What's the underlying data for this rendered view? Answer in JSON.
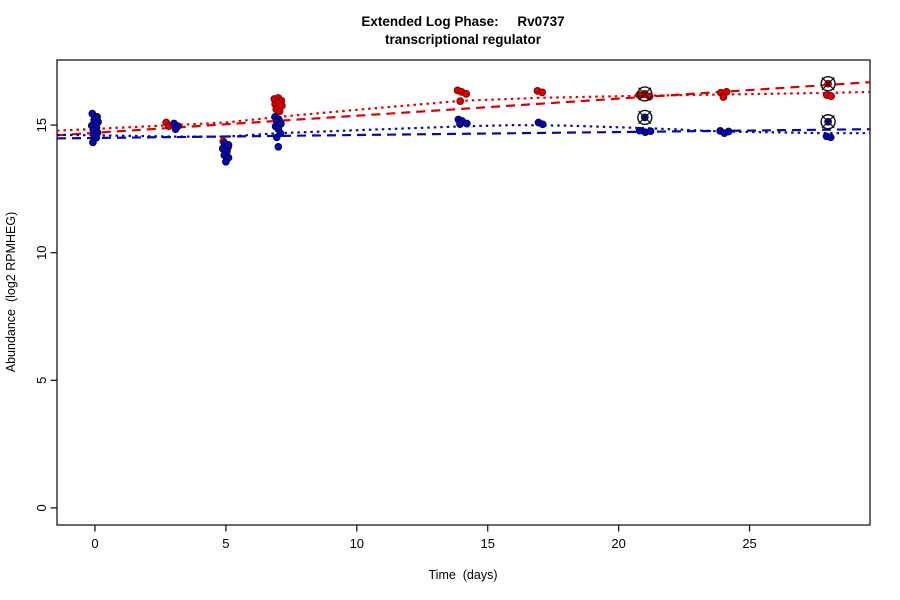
{
  "chart_data": {
    "type": "scatter",
    "title_line1": "Extended Log Phase:     Rv0737",
    "title_line2": "transcriptional regulator",
    "xlabel": "Time  (days)",
    "ylabel": "Abundance  (log2 RPMHEG)",
    "x_ticks": [
      0,
      5,
      10,
      15,
      20,
      25
    ],
    "y_ticks": [
      0,
      5,
      10,
      15
    ],
    "xlim": [
      -1.45,
      29.6
    ],
    "ylim": [
      -0.67,
      17.55
    ],
    "grid": false,
    "legend": "none",
    "colors": {
      "red_series": "#dc0000",
      "red_edge": "#7a0000",
      "blue_series": "#0808b0",
      "blue_edge": "#00004a",
      "axis": "#1a1a1a",
      "flag": "#111111"
    },
    "trend_lines": [
      {
        "name": "red-linear-fit",
        "color_key": "red_series",
        "dash": "long-dash",
        "points": [
          [
            -1.45,
            14.6
          ],
          [
            29.6,
            16.68
          ]
        ]
      },
      {
        "name": "red-smooth-fit",
        "color_key": "red_series",
        "dash": "dotted",
        "points": [
          [
            -1.45,
            14.78
          ],
          [
            0,
            14.85
          ],
          [
            3,
            15.0
          ],
          [
            5,
            15.1
          ],
          [
            7,
            15.32
          ],
          [
            10,
            15.6
          ],
          [
            14,
            15.95
          ],
          [
            17,
            16.07
          ],
          [
            21,
            16.15
          ],
          [
            24,
            16.2
          ],
          [
            28,
            16.26
          ],
          [
            29.6,
            16.3
          ]
        ]
      },
      {
        "name": "blue-linear-fit",
        "color_key": "blue_series",
        "dash": "long-dash",
        "points": [
          [
            -1.45,
            14.48
          ],
          [
            29.6,
            14.84
          ]
        ]
      },
      {
        "name": "blue-smooth-fit",
        "color_key": "blue_series",
        "dash": "dotted",
        "points": [
          [
            -1.45,
            14.62
          ],
          [
            0,
            14.6
          ],
          [
            3,
            14.55
          ],
          [
            5,
            14.55
          ],
          [
            7,
            14.68
          ],
          [
            10,
            14.8
          ],
          [
            14,
            14.95
          ],
          [
            16,
            15.0
          ],
          [
            18,
            14.98
          ],
          [
            21,
            14.88
          ],
          [
            24,
            14.75
          ],
          [
            28,
            14.68
          ],
          [
            29.6,
            14.68
          ]
        ]
      }
    ],
    "series": [
      {
        "name": "red-condition",
        "color_key": "red_series",
        "edge_key": "red_edge",
        "points": [
          [
            2.72,
            15.1
          ],
          [
            2.82,
            14.96
          ],
          [
            3.0,
            15.03
          ],
          [
            4.9,
            14.36
          ],
          [
            5.02,
            14.24
          ],
          [
            5.08,
            14.12
          ],
          [
            6.85,
            16.02
          ],
          [
            7.0,
            16.06
          ],
          [
            7.12,
            15.96
          ],
          [
            6.88,
            15.82
          ],
          [
            7.02,
            15.86
          ],
          [
            7.14,
            15.76
          ],
          [
            6.92,
            15.62
          ],
          [
            7.05,
            15.54
          ],
          [
            13.85,
            16.36
          ],
          [
            14.0,
            16.3
          ],
          [
            14.18,
            16.22
          ],
          [
            13.95,
            15.94
          ],
          [
            16.9,
            16.34
          ],
          [
            17.08,
            16.28
          ],
          [
            20.78,
            16.18
          ],
          [
            21.0,
            16.22,
            1
          ],
          [
            21.18,
            16.12
          ],
          [
            23.9,
            16.27
          ],
          [
            24.12,
            16.3
          ],
          [
            24.0,
            16.1
          ],
          [
            28.0,
            16.62,
            1
          ],
          [
            27.95,
            16.18
          ],
          [
            28.12,
            16.13
          ]
        ]
      },
      {
        "name": "blue-condition",
        "color_key": "blue_series",
        "edge_key": "blue_edge",
        "points": [
          [
            -0.1,
            15.45
          ],
          [
            0.08,
            15.32
          ],
          [
            -0.03,
            15.2
          ],
          [
            0.12,
            15.12
          ],
          [
            0.02,
            15.05
          ],
          [
            -0.12,
            14.98
          ],
          [
            0.06,
            14.9
          ],
          [
            -0.06,
            14.8
          ],
          [
            0.1,
            14.7
          ],
          [
            -0.02,
            14.6
          ],
          [
            0.05,
            14.5
          ],
          [
            -0.08,
            14.32
          ],
          [
            3.02,
            15.06
          ],
          [
            3.16,
            14.96
          ],
          [
            3.08,
            14.84
          ],
          [
            4.95,
            14.28
          ],
          [
            5.1,
            14.22
          ],
          [
            4.88,
            14.08
          ],
          [
            5.04,
            13.97
          ],
          [
            4.94,
            13.82
          ],
          [
            5.1,
            13.72
          ],
          [
            5.0,
            13.56
          ],
          [
            6.88,
            15.32
          ],
          [
            7.02,
            15.22
          ],
          [
            6.95,
            15.12
          ],
          [
            7.1,
            15.05
          ],
          [
            6.9,
            14.95
          ],
          [
            7.0,
            14.85
          ],
          [
            7.08,
            14.68
          ],
          [
            6.94,
            14.52
          ],
          [
            7.0,
            14.15
          ],
          [
            13.88,
            15.22
          ],
          [
            14.02,
            15.16
          ],
          [
            14.2,
            15.06
          ],
          [
            13.94,
            15.04
          ],
          [
            16.94,
            15.1
          ],
          [
            17.1,
            15.03
          ],
          [
            20.8,
            14.78
          ],
          [
            21.02,
            14.72
          ],
          [
            21.22,
            14.76
          ],
          [
            21.0,
            15.3,
            1
          ],
          [
            23.88,
            14.77
          ],
          [
            24.04,
            14.68
          ],
          [
            24.2,
            14.75
          ],
          [
            28.0,
            15.13,
            1
          ],
          [
            27.94,
            14.56
          ],
          [
            28.1,
            14.52
          ]
        ]
      }
    ],
    "flag_marker": "circle-with-x"
  }
}
